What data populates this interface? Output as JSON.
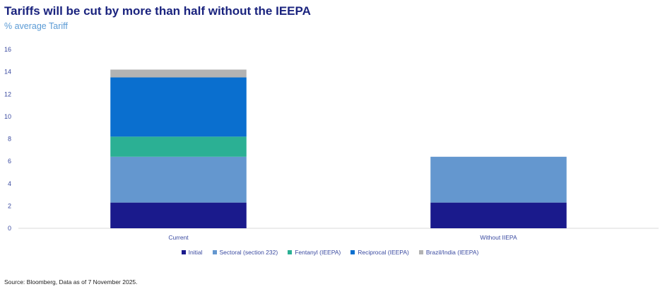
{
  "header": {
    "title": "Tariffs will be cut by more than half without the IEEPA",
    "subtitle": "% average Tariff"
  },
  "footer": {
    "source": "Source: Bloomberg, Data as of 7 November 2025."
  },
  "colors": {
    "axis": "#d9d9d9",
    "text": "#3a4aa0"
  },
  "chart_data": {
    "type": "bar",
    "stacked": true,
    "categories": [
      "Current",
      "Without IIEPA"
    ],
    "series": [
      {
        "name": "Initial",
        "color": "#1a1a8c",
        "values": [
          2.3,
          2.3
        ]
      },
      {
        "name": "Sectoral (section 232)",
        "color": "#6497cf",
        "values": [
          4.1,
          4.1
        ]
      },
      {
        "name": "Fentanyl (IEEPA)",
        "color": "#2bb094",
        "values": [
          1.8,
          0
        ]
      },
      {
        "name": "Reciprocal (IEEPA)",
        "color": "#0a6fcf",
        "values": [
          5.3,
          0
        ]
      },
      {
        "name": "Brazil/India (IEEPA)",
        "color": "#b3b3b3",
        "values": [
          0.7,
          0
        ]
      }
    ],
    "yticks": [
      0,
      2,
      4,
      6,
      8,
      10,
      12,
      14,
      16
    ],
    "ylim": [
      0,
      16
    ],
    "legend": "bottom",
    "grid": false
  }
}
